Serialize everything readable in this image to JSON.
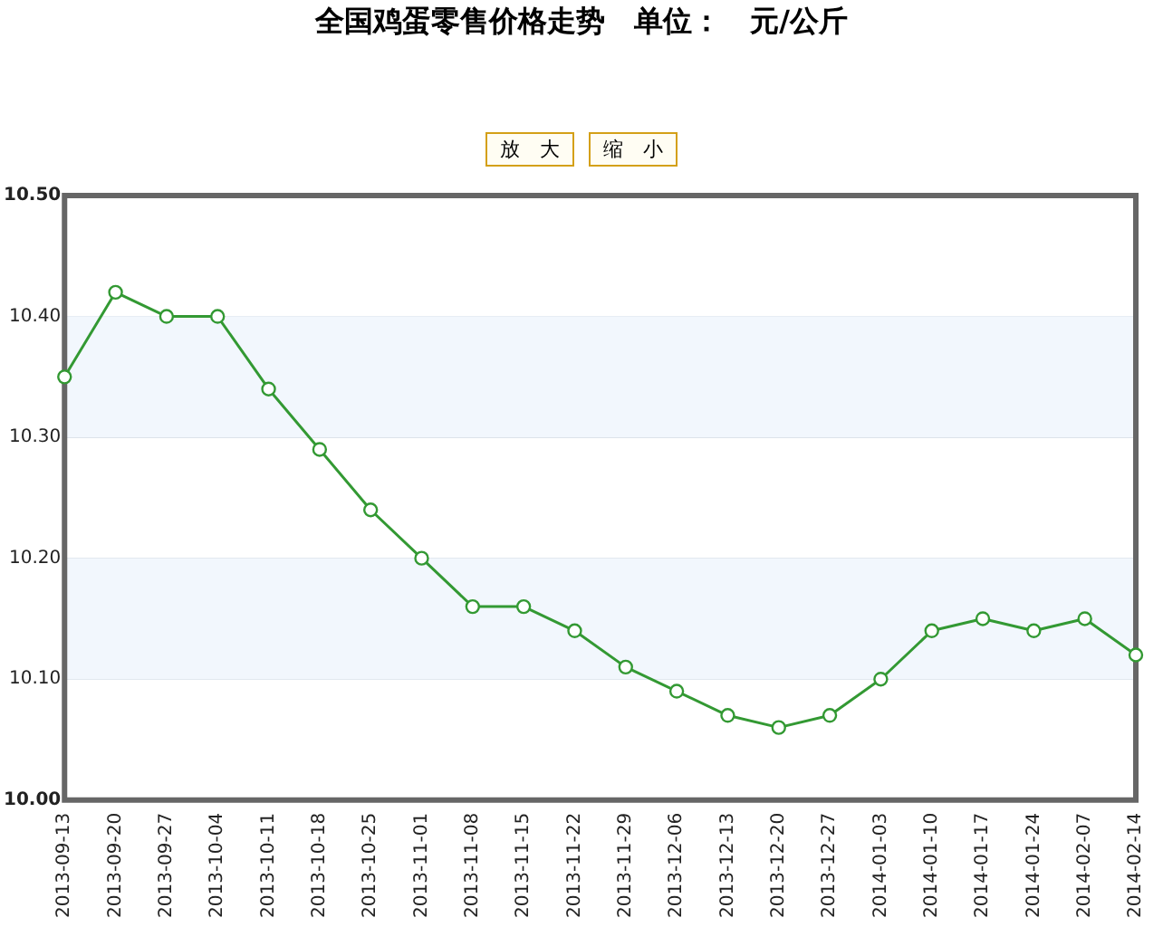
{
  "chart_data": {
    "type": "line",
    "title": "全国鸡蛋零售价格走势　单位：　元/公斤",
    "annotations": [
      "放　大",
      "缩　小"
    ],
    "categories": [
      "2013-09-13",
      "2013-09-20",
      "2013-09-27",
      "2013-10-04",
      "2013-10-11",
      "2013-10-18",
      "2013-10-25",
      "2013-11-01",
      "2013-11-08",
      "2013-11-15",
      "2013-11-22",
      "2013-11-29",
      "2013-12-06",
      "2013-12-13",
      "2013-12-20",
      "2013-12-27",
      "2014-01-03",
      "2014-01-10",
      "2014-01-17",
      "2014-01-24",
      "2014-02-07",
      "2014-02-14"
    ],
    "series": [
      {
        "color": "#339933",
        "values": [
          10.35,
          10.42,
          10.4,
          10.4,
          10.34,
          10.29,
          10.24,
          10.2,
          10.16,
          10.16,
          10.14,
          10.11,
          10.09,
          10.07,
          10.06,
          10.07,
          10.1,
          10.14,
          10.15,
          10.14,
          10.15,
          10.12
        ]
      }
    ],
    "ylim": [
      10.0,
      10.5
    ],
    "yticks": [
      {
        "value": 10.0,
        "label": "10.00"
      },
      {
        "value": 10.1,
        "label": "10.10"
      },
      {
        "value": 10.2,
        "label": "10.20"
      },
      {
        "value": 10.3,
        "label": "10.30"
      },
      {
        "value": 10.4,
        "label": "10.40"
      },
      {
        "value": 10.5,
        "label": "10.50"
      }
    ],
    "bands": [
      {
        "axis": "y",
        "from": 10.1,
        "to": 10.2,
        "color": "#f2f7fd"
      },
      {
        "axis": "y",
        "from": 10.3,
        "to": 10.4,
        "color": "#f2f7fd"
      }
    ],
    "grid": "y",
    "marker": "circle",
    "line_style": "solid",
    "legend": false
  }
}
